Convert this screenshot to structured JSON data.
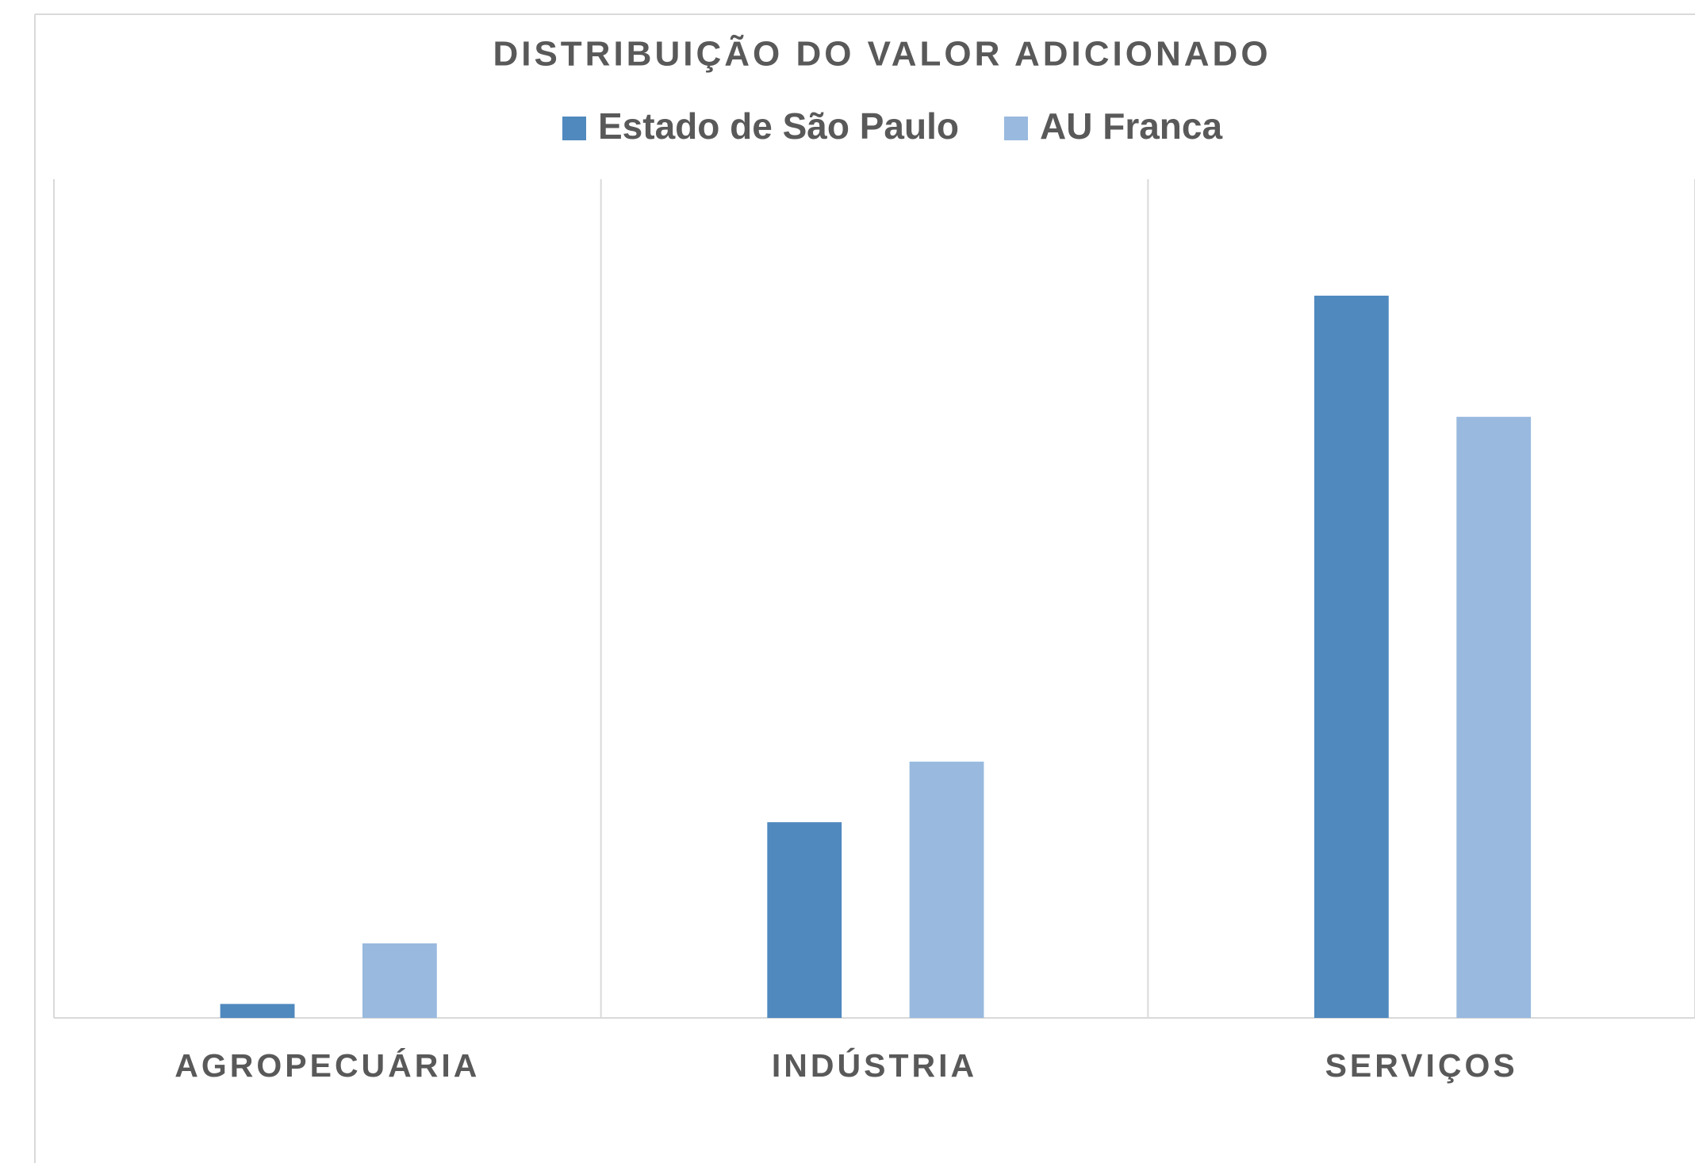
{
  "chart_data": {
    "type": "bar",
    "title": "DISTRIBUIÇÃO DO VALOR ADICIONADO",
    "categories": [
      "AGROPECUÁRIA",
      "INDÚSTRIA",
      "SERVIÇOS"
    ],
    "series": [
      {
        "name": "Estado de São Paulo",
        "color": "#4f89be",
        "values": [
          1.5,
          21,
          77.5
        ]
      },
      {
        "name": "AU Franca",
        "color": "#99b9df",
        "values": [
          8,
          27.5,
          64.5
        ]
      }
    ],
    "ylim": [
      0,
      90
    ],
    "legend": "top"
  }
}
